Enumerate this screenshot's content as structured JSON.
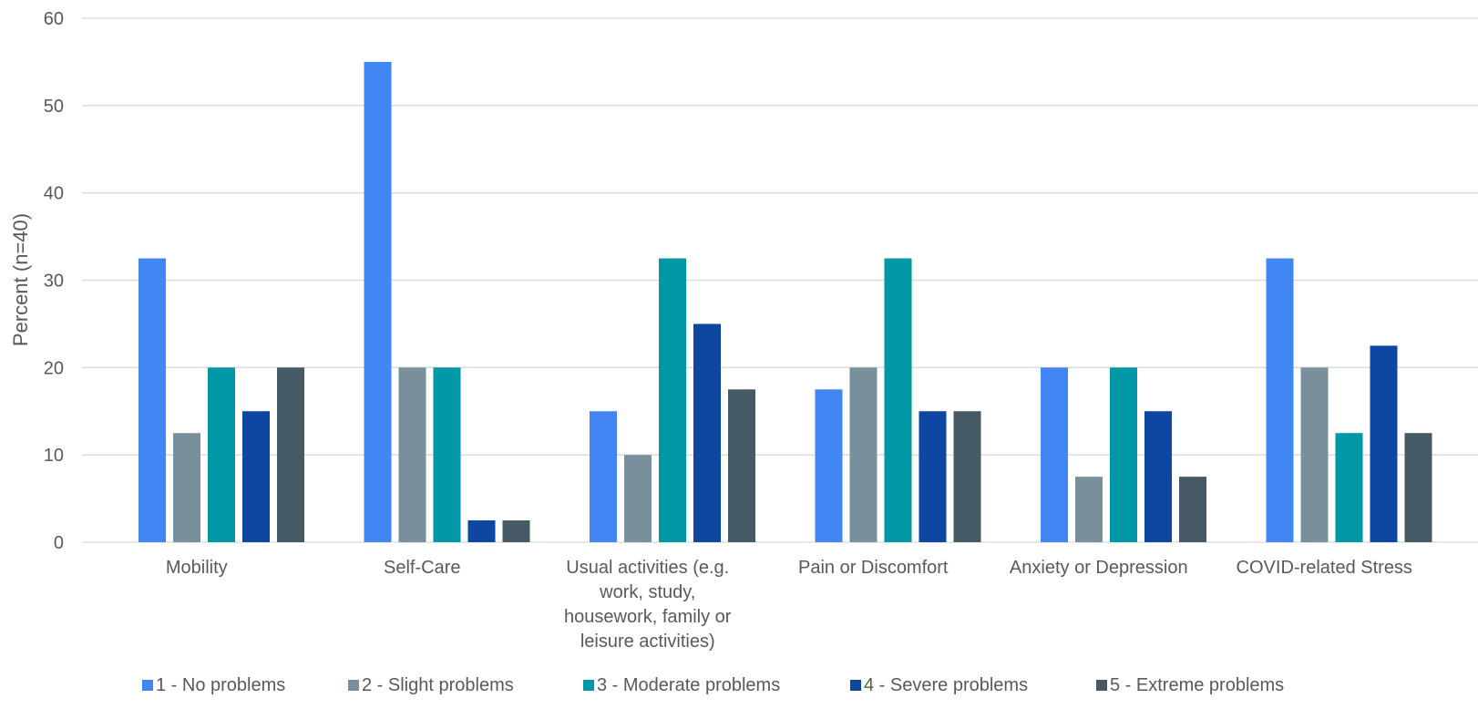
{
  "chart_data": {
    "type": "bar",
    "ylabel": "Percent (n=40)",
    "ylim": [
      0,
      60
    ],
    "yticks": [
      0,
      10,
      20,
      30,
      40,
      50,
      60
    ],
    "grid": true,
    "legend_position": "bottom",
    "categories": [
      [
        "Mobility"
      ],
      [
        "Self-Care"
      ],
      [
        "Usual activities (e.g.",
        "work, study,",
        "housework, family or",
        "leisure activities)"
      ],
      [
        "Pain or Discomfort"
      ],
      [
        "Anxiety or Depression"
      ],
      [
        "COVID-related Stress"
      ]
    ],
    "series": [
      {
        "name": "1 - No problems",
        "color": "#4285f4",
        "values": [
          32.5,
          55,
          15,
          17.5,
          20,
          32.5
        ]
      },
      {
        "name": "2 - Slight problems",
        "color": "#78909c",
        "values": [
          12.5,
          20,
          10,
          20,
          7.5,
          20
        ]
      },
      {
        "name": "3 - Moderate problems",
        "color": "#0097a7",
        "values": [
          20,
          20,
          32.5,
          32.5,
          20,
          12.5
        ]
      },
      {
        "name": "4 - Severe problems",
        "color": "#0d47a1",
        "values": [
          15,
          2.5,
          25,
          15,
          15,
          22.5
        ]
      },
      {
        "name": "5 - Extreme problems",
        "color": "#455a64",
        "values": [
          20,
          2.5,
          17.5,
          15,
          7.5,
          12.5
        ]
      }
    ]
  }
}
